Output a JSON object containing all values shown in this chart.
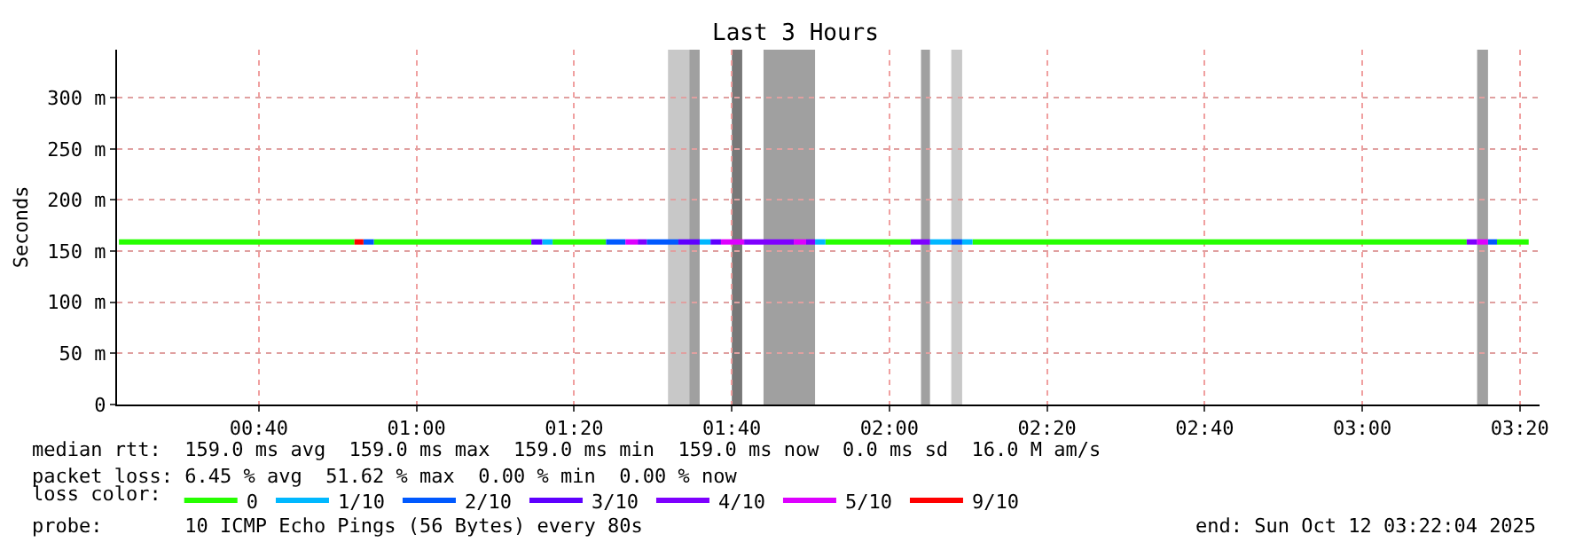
{
  "chart_data": {
    "type": "line",
    "title": "Last 3 Hours",
    "ylabel": "Seconds",
    "legend_title": "loss color:",
    "xlim": [
      0.367,
      3.375
    ],
    "ylim": [
      0,
      347
    ],
    "xticks": [
      {
        "value": 0.6667,
        "label": "00:40"
      },
      {
        "value": 1.0,
        "label": "01:00"
      },
      {
        "value": 1.3333,
        "label": "01:20"
      },
      {
        "value": 1.6667,
        "label": "01:40"
      },
      {
        "value": 2.0,
        "label": "02:00"
      },
      {
        "value": 2.3333,
        "label": "02:20"
      },
      {
        "value": 2.6667,
        "label": "02:40"
      },
      {
        "value": 3.0,
        "label": "03:00"
      },
      {
        "value": 3.3333,
        "label": "03:20"
      }
    ],
    "yticks": [
      0,
      {
        "value": 50,
        "label": "50 m"
      },
      {
        "value": 100,
        "label": "100 m"
      },
      {
        "value": 150,
        "label": "150 m"
      },
      {
        "value": 200,
        "label": "200 m"
      },
      {
        "value": 250,
        "label": "250 m"
      },
      {
        "value": 300,
        "label": "300 m"
      }
    ],
    "grid": true,
    "legend": "bottom",
    "line_style": "solid",
    "series": [
      {
        "name": "0",
        "color": "#26ff00",
        "x": [
          0.371,
          0.869,
          0.89,
          0.91,
          1.243,
          1.265,
          1.288,
          1.401,
          1.6,
          1.865,
          2.045,
          2.1,
          2.176,
          3.221,
          3.25,
          3.285,
          3.352
        ],
        "values": [
          159,
          159,
          null,
          159,
          159,
          null,
          159,
          159,
          null,
          159,
          159,
          null,
          159,
          159,
          null,
          159,
          159
        ]
      },
      {
        "name": "1/10",
        "color": "#00b8ff",
        "x": [
          1.266,
          1.288,
          1.4,
          1.599,
          1.622,
          1.7,
          1.843,
          1.865,
          2.0,
          2.086,
          2.131,
          2.14,
          2.154,
          2.176
        ],
        "values": [
          159,
          159,
          null,
          159,
          159,
          null,
          159,
          159,
          null,
          159,
          159,
          null,
          159,
          159
        ]
      },
      {
        "name": "2/10",
        "color": "#0059ff",
        "x": [
          0.888,
          0.91,
          1.2,
          1.401,
          1.442,
          1.46,
          1.487,
          1.554,
          1.8,
          2.131,
          2.154,
          2.7,
          3.266,
          3.285
        ],
        "values": [
          159,
          159,
          null,
          159,
          159,
          null,
          159,
          159,
          null,
          159,
          159,
          null,
          159,
          159
        ]
      },
      {
        "name": "3/10",
        "color": "#5e00ff",
        "x": [
          1.243,
          1.266,
          1.4,
          1.554,
          1.599,
          1.61,
          1.622,
          1.644
        ],
        "values": [
          159,
          159,
          null,
          159,
          159,
          null,
          159,
          159
        ]
      },
      {
        "name": "4/10",
        "color": "#7e00ff",
        "x": [
          1.468,
          1.487,
          1.6,
          1.693,
          1.798,
          1.81,
          1.824,
          1.843,
          1.9,
          2.045,
          2.086,
          2.6,
          3.221,
          3.243
        ],
        "values": [
          159,
          159,
          null,
          159,
          159,
          null,
          159,
          159,
          null,
          159,
          159,
          null,
          159,
          159
        ]
      },
      {
        "name": "5/10",
        "color": "#dd00ff",
        "x": [
          1.442,
          1.468,
          1.55,
          1.644,
          1.693,
          1.75,
          1.798,
          1.824,
          2.5,
          3.243,
          3.266
        ],
        "values": [
          159,
          159,
          null,
          159,
          159,
          null,
          159,
          159,
          null,
          159,
          159
        ]
      },
      {
        "name": "9/10",
        "color": "#ff0000",
        "x": [
          0.869,
          0.888
        ],
        "values": [
          159,
          159
        ]
      }
    ],
    "bands": [
      {
        "axis": "x",
        "from": 1.532,
        "to": 1.577,
        "color": "#c8c8c8"
      },
      {
        "axis": "x",
        "from": 1.577,
        "to": 1.599,
        "color": "#a0a0a0"
      },
      {
        "axis": "x",
        "from": 1.667,
        "to": 1.689,
        "color": "#787878"
      },
      {
        "axis": "x",
        "from": 1.734,
        "to": 1.843,
        "color": "#a0a0a0"
      },
      {
        "axis": "x",
        "from": 2.067,
        "to": 2.086,
        "color": "#a0a0a0"
      },
      {
        "axis": "x",
        "from": 2.131,
        "to": 2.154,
        "color": "#c8c8c8"
      },
      {
        "axis": "x",
        "from": 3.243,
        "to": 3.266,
        "color": "#a0a0a0"
      }
    ],
    "annotations": [
      "median rtt:  159.0 ms avg  159.0 ms max  159.0 ms min  159.0 ms now  0.0 ms sd  16.0 M am/s",
      "packet loss: 6.45 % avg  51.62 % max  0.00 % min  0.00 % now",
      "probe:       10 ICMP Echo Pings (56 Bytes) every 80s",
      "end: Sun Oct 12 03:22:04 2025"
    ]
  }
}
